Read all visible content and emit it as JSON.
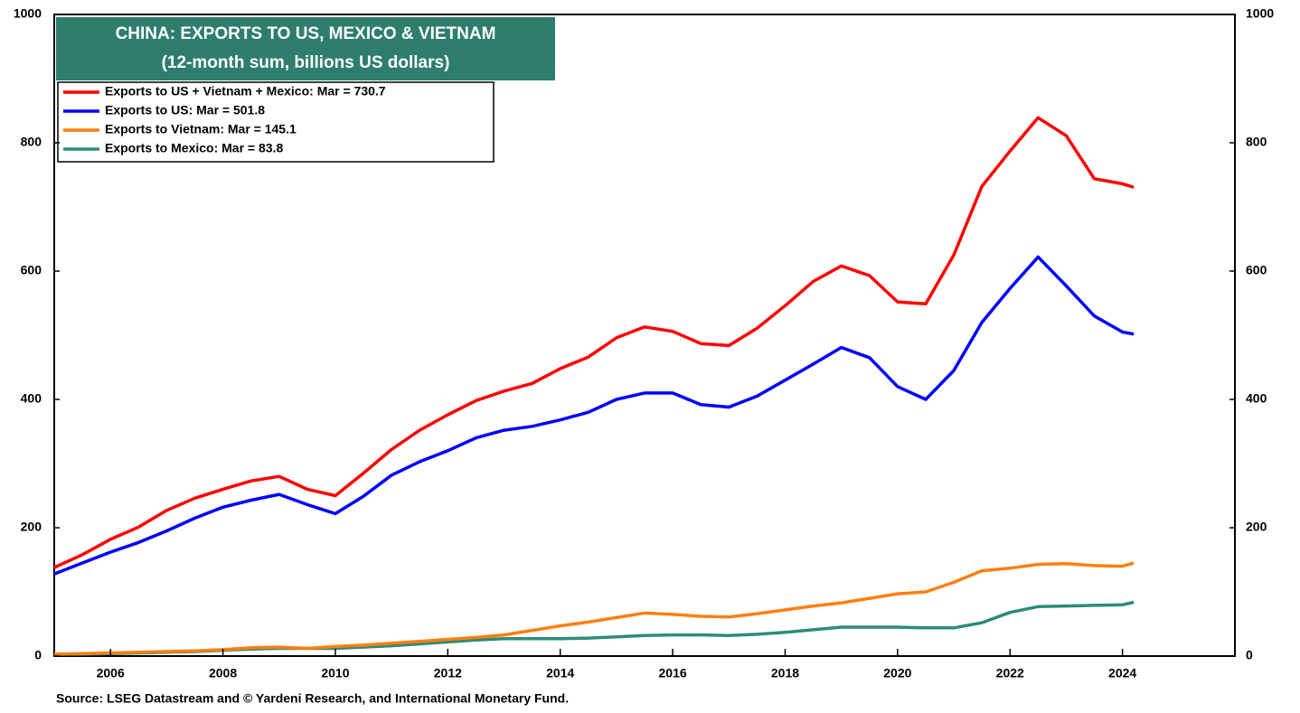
{
  "chart_data": {
    "type": "line",
    "title": "CHINA: EXPORTS TO US, MEXICO & VIETNAM",
    "subtitle": "(12-month sum, billions US dollars)",
    "source": "Source: LSEG Datastream and © Yardeni Research, and International Monetary Fund.",
    "x": [
      2005,
      2005.5,
      2006,
      2006.5,
      2007,
      2007.5,
      2008,
      2008.5,
      2009,
      2009.5,
      2010,
      2010.5,
      2011,
      2011.5,
      2012,
      2012.5,
      2013,
      2013.5,
      2014,
      2014.5,
      2015,
      2015.5,
      2016,
      2016.5,
      2017,
      2017.5,
      2018,
      2018.5,
      2019,
      2019.5,
      2020,
      2020.5,
      2021,
      2021.5,
      2022,
      2022.5,
      2023,
      2023.5,
      2024,
      2024.2
    ],
    "series": [
      {
        "name": "Exports to US + Vietnam + Mexico: Mar = 730.7",
        "color": "#ff0000",
        "values": [
          138,
          158,
          182,
          201,
          227,
          246,
          260,
          273,
          280,
          260,
          250,
          285,
          322,
          352,
          376,
          398,
          413,
          425,
          448,
          466,
          496,
          513,
          506,
          487,
          484,
          511,
          546,
          584,
          608,
          593,
          552,
          549,
          625,
          732,
          787,
          839,
          811,
          744,
          736,
          730.7
        ]
      },
      {
        "name": "Exports to US: Mar = 501.8",
        "color": "#0000ff",
        "values": [
          128,
          145,
          162,
          177,
          195,
          215,
          232,
          243,
          252,
          236,
          222,
          249,
          282,
          303,
          320,
          340,
          352,
          358,
          368,
          380,
          400,
          410,
          410,
          392,
          388,
          405,
          430,
          455,
          481,
          465,
          420,
          400,
          445,
          520,
          573,
          622,
          577,
          530,
          505,
          501.8
        ]
      },
      {
        "name": "Exports to Vietnam: Mar = 145.1",
        "color": "#ff7f0e",
        "values": [
          3,
          4,
          5,
          6,
          7,
          8,
          10,
          13,
          14,
          12,
          15,
          17,
          20,
          23,
          26,
          29,
          33,
          40,
          47,
          53,
          60,
          67,
          65,
          62,
          61,
          66,
          72,
          78,
          83,
          90,
          97,
          100,
          115,
          133,
          137,
          143,
          144,
          141,
          140,
          145.1
        ]
      },
      {
        "name": "Exports to Mexico: Mar = 83.8",
        "color": "#2e8b7a",
        "values": [
          3,
          3,
          4,
          5,
          6,
          7,
          9,
          11,
          12,
          12,
          12,
          14,
          16,
          19,
          22,
          25,
          27,
          27,
          27,
          28,
          30,
          32,
          33,
          33,
          32,
          34,
          37,
          41,
          45,
          45,
          45,
          44,
          44,
          52,
          68,
          77,
          78,
          79,
          80,
          83.8
        ]
      }
    ],
    "xlim": [
      2005,
      2026
    ],
    "xticks": [
      2006,
      2008,
      2010,
      2012,
      2014,
      2016,
      2018,
      2020,
      2022,
      2024
    ],
    "ylim": [
      0,
      1000
    ],
    "yticks": [
      0,
      200,
      400,
      600,
      800,
      1000
    ],
    "y2lim": [
      0,
      1000
    ],
    "y2ticks": [
      0,
      200,
      400,
      600,
      800,
      1000
    ],
    "title_color": "#2e7d6e"
  }
}
